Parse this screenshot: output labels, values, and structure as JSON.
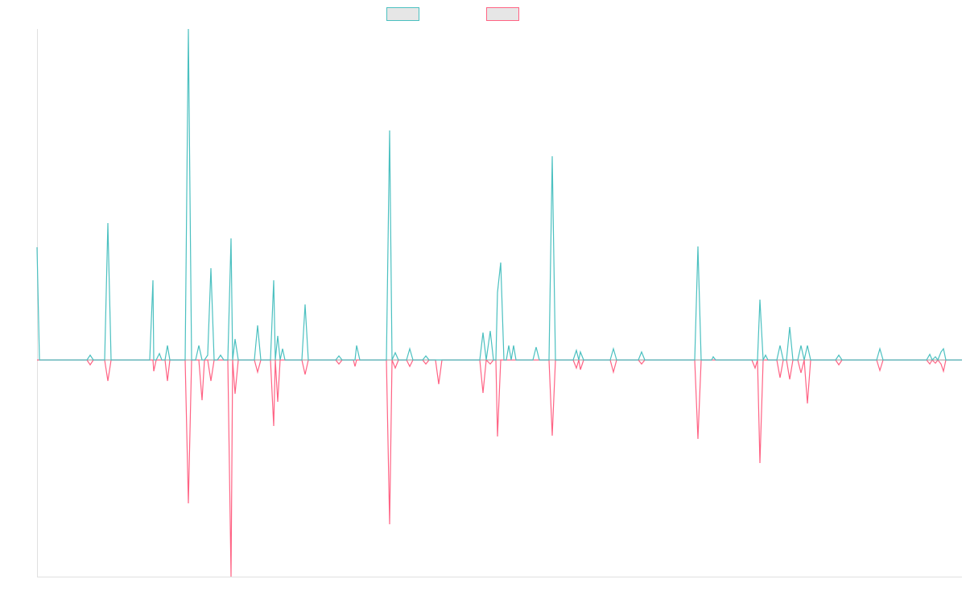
{
  "chart_data": {
    "type": "line",
    "xlim": [
      0,
      1149
    ],
    "ylim": [
      -269,
      411
    ],
    "x": [
      0,
      3,
      62,
      66,
      70,
      84,
      88,
      92,
      140,
      144,
      145,
      148,
      152,
      155,
      159,
      162,
      165,
      184,
      188,
      192,
      197,
      201,
      205,
      208,
      212,
      216,
      220,
      224,
      228,
      232,
      237,
      241,
      243,
      246,
      250,
      270,
      274,
      278,
      290,
      294,
      296,
      299,
      302,
      305,
      308,
      329,
      333,
      337,
      371,
      375,
      379,
      393,
      395,
      397,
      401,
      434,
      438,
      441,
      445,
      449,
      459,
      463,
      467,
      479,
      483,
      487,
      495,
      499,
      503,
      550,
      554,
      558,
      563,
      567,
      570,
      572,
      576,
      580,
      583,
      586,
      589,
      592,
      595,
      616,
      620,
      624,
      636,
      640,
      644,
      666,
      670,
      673,
      675,
      679,
      712,
      716,
      720,
      747,
      751,
      755,
      817,
      821,
      825,
      838,
      840,
      843,
      888,
      892,
      895,
      898,
      902,
      905,
      908,
      919,
      923,
      927,
      931,
      935,
      939,
      945,
      949,
      953,
      957,
      961,
      992,
      996,
      1000,
      1043,
      1047,
      1051,
      1105,
      1109,
      1112,
      1116,
      1119,
      1123,
      1126,
      1129,
      1149
    ],
    "series": [
      {
        "color": "#4bc0c0",
        "values": [
          140,
          0,
          0,
          6,
          0,
          0,
          170,
          0,
          0,
          99,
          0,
          0,
          8,
          0,
          0,
          18,
          0,
          0,
          411,
          0,
          0,
          18,
          0,
          0,
          6,
          114,
          0,
          0,
          6,
          0,
          0,
          151,
          0,
          26,
          0,
          0,
          43,
          0,
          0,
          99,
          0,
          30,
          0,
          14,
          0,
          0,
          69,
          0,
          0,
          5,
          0,
          0,
          0,
          18,
          0,
          0,
          285,
          0,
          9,
          0,
          0,
          14,
          0,
          0,
          5,
          0,
          0,
          0,
          0,
          0,
          34,
          0,
          36,
          0,
          0,
          84,
          121,
          0,
          0,
          18,
          0,
          18,
          0,
          0,
          16,
          0,
          0,
          253,
          0,
          0,
          12,
          0,
          10,
          0,
          0,
          14,
          0,
          0,
          10,
          0,
          0,
          141,
          0,
          0,
          4,
          0,
          0,
          0,
          0,
          75,
          0,
          6,
          0,
          0,
          18,
          0,
          0,
          41,
          0,
          0,
          18,
          0,
          18,
          0,
          0,
          6,
          0,
          0,
          14,
          0,
          0,
          7,
          0,
          4,
          0,
          10,
          14,
          0,
          0
        ]
      },
      {
        "color": "#ff6384",
        "values": [
          0,
          0,
          0,
          -6,
          0,
          0,
          -26,
          0,
          0,
          0,
          -14,
          0,
          0,
          0,
          0,
          -26,
          0,
          0,
          -178,
          0,
          0,
          0,
          -50,
          0,
          0,
          -26,
          0,
          0,
          0,
          0,
          0,
          -269,
          0,
          -42,
          0,
          0,
          -15,
          0,
          0,
          -82,
          0,
          -52,
          0,
          0,
          0,
          0,
          -18,
          0,
          0,
          -5,
          0,
          0,
          -8,
          0,
          0,
          0,
          -204,
          0,
          -10,
          0,
          0,
          -8,
          0,
          0,
          -5,
          0,
          0,
          -30,
          0,
          0,
          -41,
          0,
          -5,
          0,
          0,
          -95,
          0,
          0,
          0,
          0,
          0,
          0,
          0,
          0,
          0,
          0,
          0,
          -94,
          0,
          0,
          -10,
          0,
          -12,
          0,
          0,
          -15,
          0,
          0,
          -5,
          0,
          0,
          -98,
          0,
          0,
          0,
          0,
          0,
          -10,
          0,
          -128,
          0,
          0,
          0,
          0,
          -22,
          0,
          0,
          -24,
          0,
          0,
          -16,
          0,
          -54,
          0,
          0,
          -6,
          0,
          0,
          -13,
          0,
          0,
          -5,
          0,
          -4,
          0,
          -5,
          -14,
          0,
          0
        ]
      }
    ]
  }
}
